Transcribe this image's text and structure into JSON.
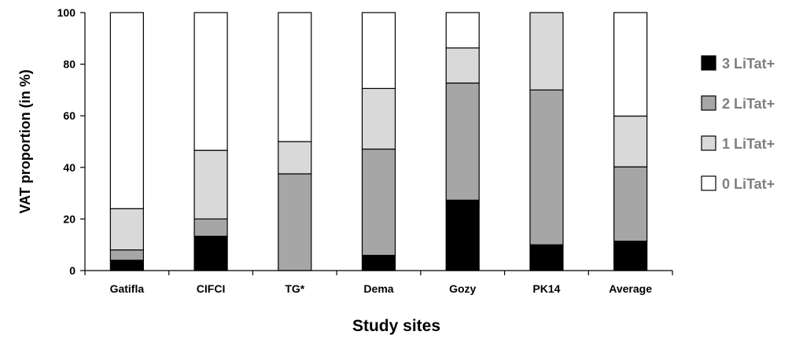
{
  "chart_data": {
    "type": "bar",
    "stacked": true,
    "categories": [
      "Gatifla",
      "CIFCI",
      "TG*",
      "Dema",
      "Gozy",
      "PK14",
      "Average"
    ],
    "series": [
      {
        "name": "3 LiTat+",
        "color": "#000000",
        "values": [
          4,
          13.3,
          0,
          5.9,
          27.3,
          10,
          11.4
        ]
      },
      {
        "name": "2 LiTat+",
        "color": "#a6a6a6",
        "values": [
          4,
          6.7,
          37.5,
          41.2,
          45.4,
          60,
          28.8
        ]
      },
      {
        "name": "1 LiTat+",
        "color": "#d9d9d9",
        "values": [
          16,
          26.6,
          12.5,
          23.5,
          13.6,
          30,
          19.7
        ]
      },
      {
        "name": "0 LiTat+",
        "color": "#ffffff",
        "values": [
          76,
          53.4,
          50,
          29.4,
          13.7,
          0,
          40.1
        ]
      }
    ],
    "xlabel": "Study sites",
    "ylabel": "VAT proportion  (in %)",
    "ylim": [
      0,
      100
    ],
    "yticks": [
      0,
      20,
      40,
      60,
      80,
      100
    ],
    "grid": false,
    "legend_position": "right"
  }
}
